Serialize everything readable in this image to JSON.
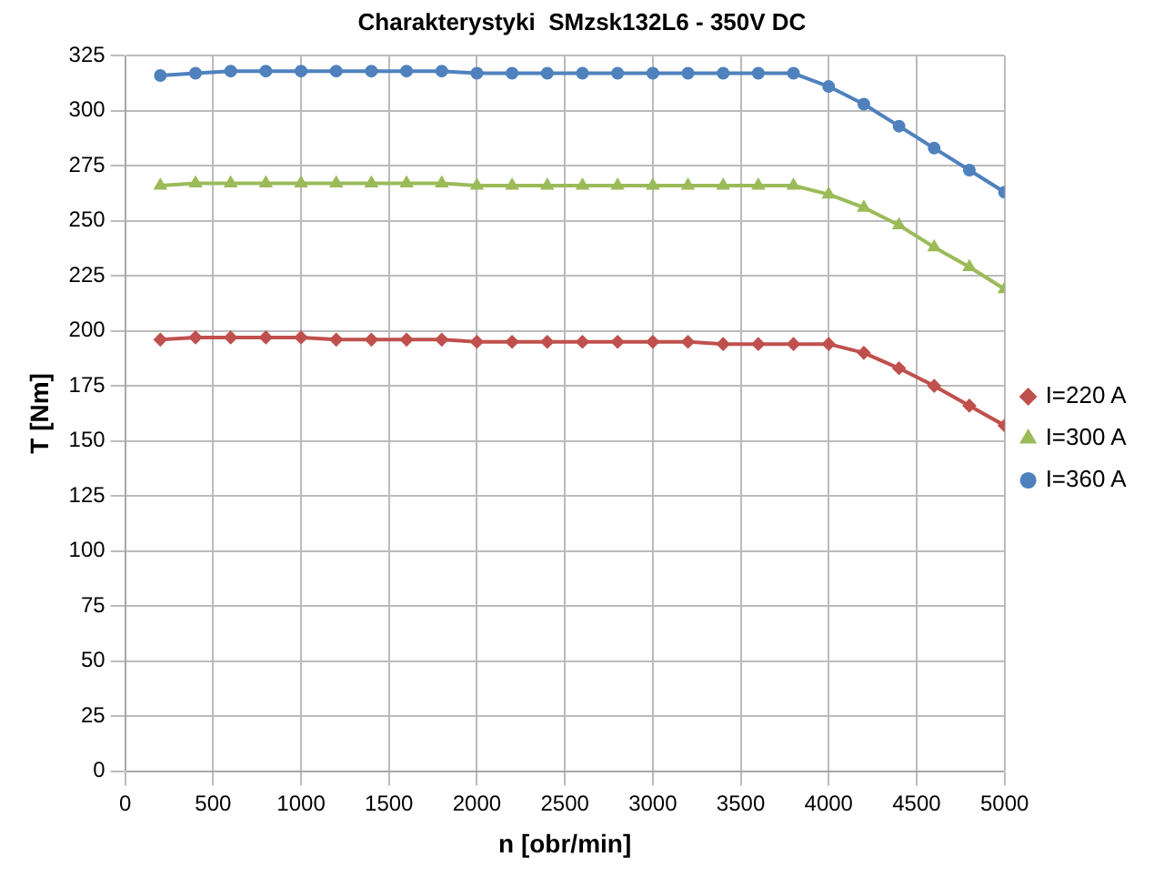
{
  "chart_data": {
    "type": "line",
    "title": "Charakterystyki  SMzsk132L6 - 350V DC",
    "xlabel": "n [obr/min]",
    "ylabel": "T [Nm]",
    "x": [
      200,
      400,
      600,
      800,
      1000,
      1200,
      1400,
      1600,
      1800,
      2000,
      2200,
      2400,
      2600,
      2800,
      3000,
      3200,
      3400,
      3600,
      3800,
      4000,
      4200,
      4400,
      4600,
      4800,
      5000
    ],
    "series": [
      {
        "name": "I=220 A",
        "color": "#c0504d",
        "marker": "diamond",
        "values": [
          196,
          197,
          197,
          197,
          197,
          196,
          196,
          196,
          196,
          195,
          195,
          195,
          195,
          195,
          195,
          195,
          194,
          194,
          194,
          194,
          190,
          183,
          175,
          166,
          157
        ]
      },
      {
        "name": "I=300 A",
        "color": "#9bbb59",
        "marker": "triangle",
        "values": [
          266,
          267,
          267,
          267,
          267,
          267,
          267,
          267,
          267,
          266,
          266,
          266,
          266,
          266,
          266,
          266,
          266,
          266,
          266,
          262,
          256,
          248,
          238,
          229,
          219
        ]
      },
      {
        "name": "I=360 A",
        "color": "#4f81bd",
        "marker": "circle",
        "values": [
          316,
          317,
          318,
          318,
          318,
          318,
          318,
          318,
          318,
          317,
          317,
          317,
          317,
          317,
          317,
          317,
          317,
          317,
          317,
          311,
          303,
          293,
          283,
          273,
          263
        ]
      }
    ],
    "xlim": [
      0,
      5000
    ],
    "xticks": [
      0,
      500,
      1000,
      1500,
      2000,
      2500,
      3000,
      3500,
      4000,
      4500,
      5000
    ],
    "ylim": [
      0,
      325
    ],
    "yticks": [
      0,
      25,
      50,
      75,
      100,
      125,
      150,
      175,
      200,
      225,
      250,
      275,
      300,
      325
    ],
    "grid": true,
    "legend": "right",
    "line_style": "solid"
  }
}
